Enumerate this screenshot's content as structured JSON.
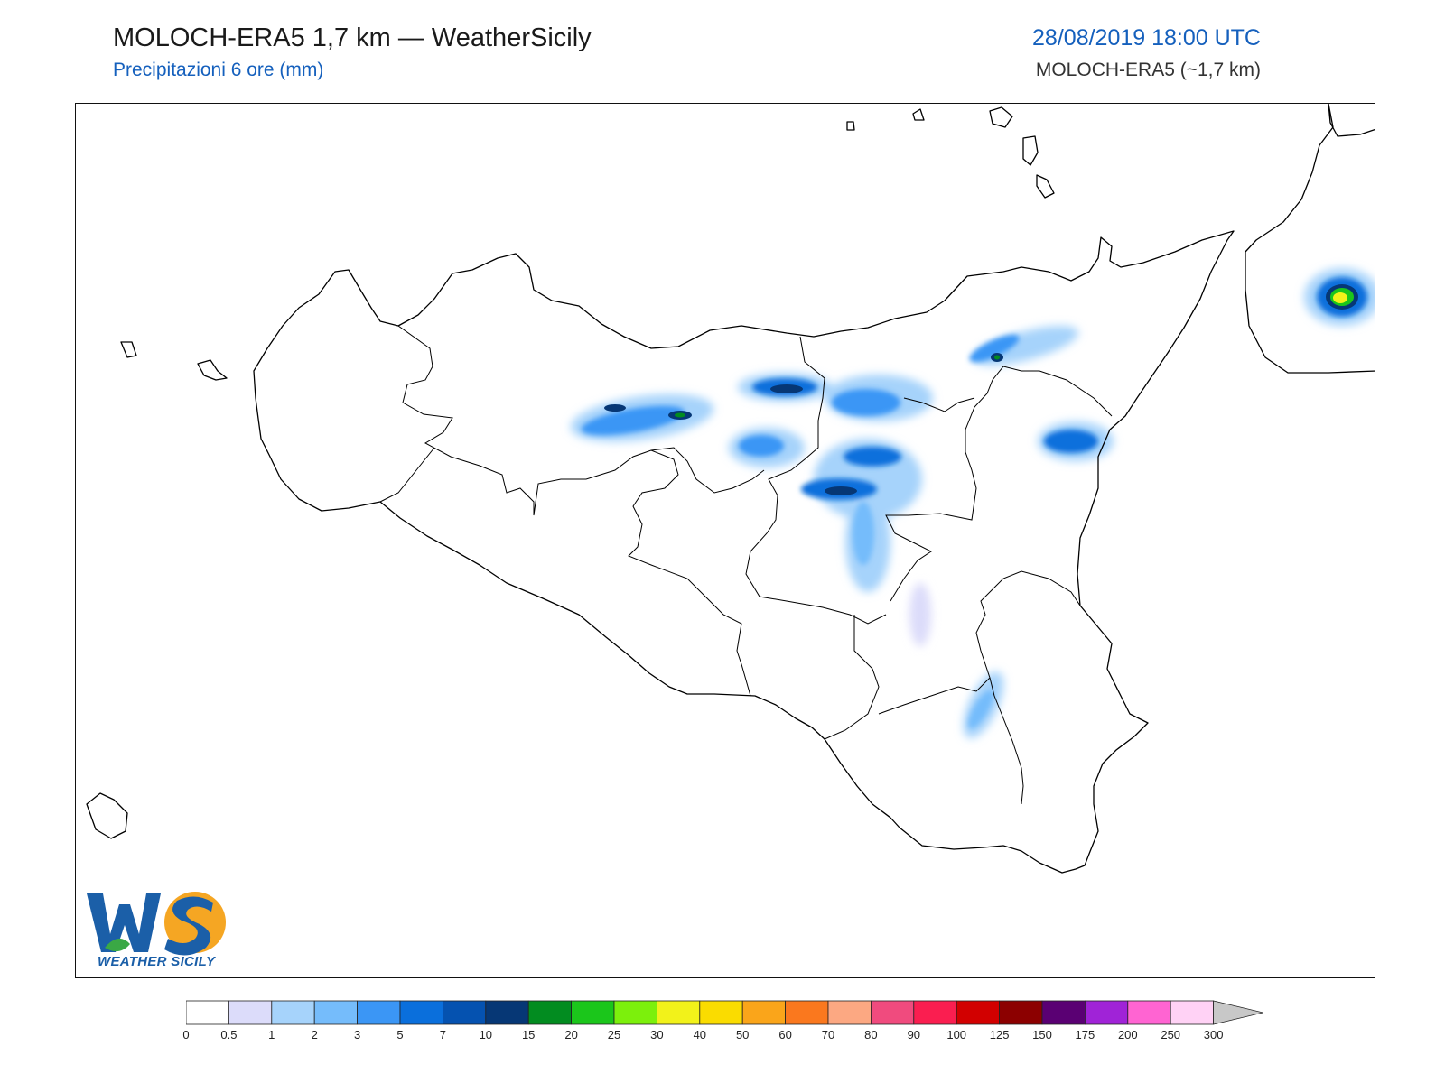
{
  "header": {
    "title": "MOLOCH-ERA5 1,7 km — WeatherSicily",
    "subtitle": "Precipitazioni 6 ore (mm)",
    "datetime": "28/08/2019 18:00 UTC",
    "model": "MOLOCH-ERA5 (~1,7 km)"
  },
  "logo": {
    "letters": "WS",
    "text": "WEATHER SICILY"
  },
  "colorbar": {
    "ticks": [
      "0",
      "0.5",
      "1",
      "2",
      "3",
      "5",
      "7",
      "10",
      "15",
      "20",
      "25",
      "30",
      "40",
      "50",
      "60",
      "70",
      "80",
      "90",
      "100",
      "125",
      "150",
      "175",
      "200",
      "250",
      "300"
    ],
    "colors": [
      "#ffffff",
      "#dcdcfa",
      "#a6d3fb",
      "#75bcfb",
      "#3b96f5",
      "#0a6fdc",
      "#0552b0",
      "#063775",
      "#028c20",
      "#1bc61b",
      "#7cf00c",
      "#f2f21a",
      "#fadc00",
      "#faa51a",
      "#fa781e",
      "#fca882",
      "#f04b7e",
      "#fa1e50",
      "#d20000",
      "#8c0000",
      "#5a0073",
      "#a023d7",
      "#ff64d2",
      "#ffd2f5"
    ],
    "extend_color": "#c8c8c8"
  }
}
